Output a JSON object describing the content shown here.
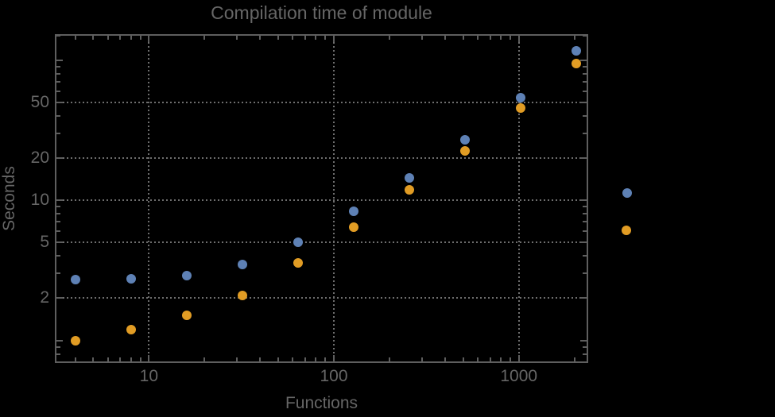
{
  "chart_data": {
    "type": "scatter",
    "title": "Compilation time of module",
    "xlabel": "Functions",
    "ylabel": "Seconds",
    "xscale": "log",
    "yscale": "log",
    "xlim": [
      3.1,
      2372
    ],
    "ylim": [
      0.69,
      153
    ],
    "x": [
      4,
      8,
      16,
      32,
      64,
      128,
      256,
      512,
      1024,
      2048
    ],
    "series": [
      {
        "name": "blue-series",
        "color": "#5E81B5",
        "values": [
          2.7,
          2.75,
          2.9,
          3.5,
          5.0,
          8.3,
          14.4,
          27,
          54,
          117
        ]
      },
      {
        "name": "orange-series",
        "color": "#E19C24",
        "values": [
          1.0,
          1.2,
          1.5,
          2.1,
          3.55,
          6.4,
          11.9,
          22.5,
          45.5,
          95
        ]
      }
    ],
    "x_ticks": [
      {
        "value": 10,
        "label": "10"
      },
      {
        "value": 100,
        "label": "100"
      },
      {
        "value": 1000,
        "label": "1000"
      }
    ],
    "y_ticks": [
      {
        "value": 2,
        "label": "2"
      },
      {
        "value": 5,
        "label": "5"
      },
      {
        "value": 10,
        "label": "10"
      },
      {
        "value": 20,
        "label": "20"
      },
      {
        "value": 50,
        "label": "50"
      }
    ],
    "y_ticks_unlabeled_major": [
      1,
      100
    ],
    "x_ticks_minor": [
      4,
      5,
      6,
      7,
      8,
      9,
      20,
      30,
      40,
      50,
      60,
      70,
      80,
      90,
      200,
      300,
      400,
      500,
      600,
      700,
      800,
      900,
      2000
    ],
    "y_ticks_minor": [
      0.7,
      0.8,
      0.9,
      3,
      4,
      6,
      7,
      8,
      9,
      30,
      40,
      60,
      70,
      80,
      90,
      150
    ],
    "grid": {
      "style": "dotted",
      "x_values": [
        10,
        100,
        1000
      ],
      "y_values": [
        2,
        5,
        10,
        20,
        50
      ]
    },
    "legend": {
      "position": "right",
      "labels_visible": false,
      "markers": [
        {
          "series": "blue-series",
          "color": "#5E81B5"
        },
        {
          "series": "orange-series",
          "color": "#E19C24"
        }
      ]
    },
    "colors": {
      "background": "#000000",
      "frame": "#5E5E5E",
      "grid": "#6E6E6E",
      "text": "#666666"
    },
    "marker_diameter_px": 12
  }
}
